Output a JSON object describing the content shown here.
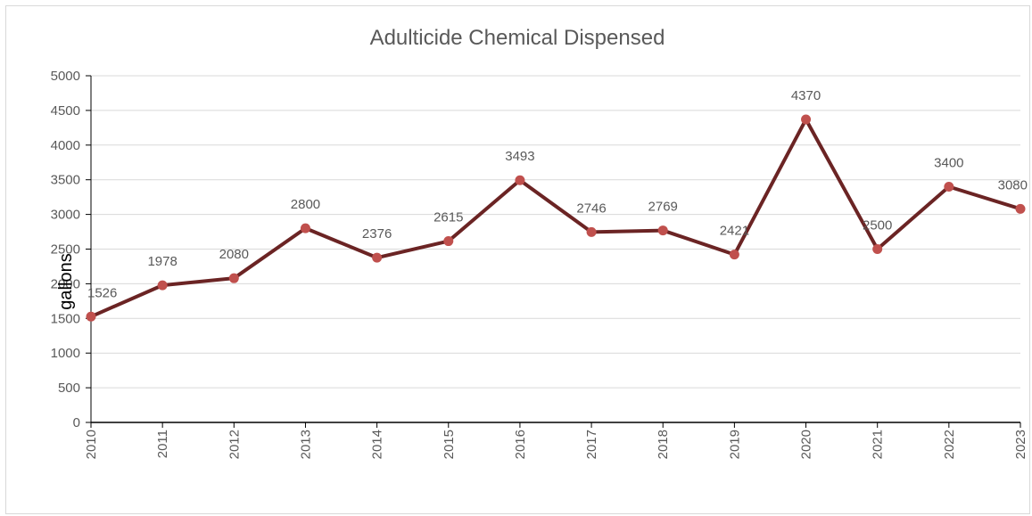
{
  "chart_data": {
    "type": "line",
    "title": "Adulticide Chemical Dispensed",
    "xlabel": "",
    "ylabel": "gallons",
    "categories": [
      "2010",
      "2011",
      "2012",
      "2013",
      "2014",
      "2015",
      "2016",
      "2017",
      "2018",
      "2019",
      "2020",
      "2021",
      "2022",
      "2023"
    ],
    "series": [
      {
        "values": [
          1526,
          1978,
          2080,
          2800,
          2376,
          2615,
          3493,
          2746,
          2769,
          2421,
          4370,
          2500,
          3400,
          3080
        ]
      }
    ],
    "ylim": [
      0,
      5000
    ],
    "yticks": [
      "0",
      "500",
      "1000",
      "1500",
      "2000",
      "2500",
      "3000",
      "3500",
      "4000",
      "4500",
      "5000"
    ],
    "data_labels": [
      "1526",
      "1978",
      "2080",
      "2800",
      "2376",
      "2615",
      "3493",
      "2746",
      "2769",
      "2421",
      "4370",
      "2500",
      "3400",
      "3080"
    ],
    "grid": true,
    "legend": "none",
    "colors": {
      "line": "#6b2424",
      "marker": "#c0504d",
      "grid": "#d9d9d9",
      "axis": "#000000"
    }
  }
}
